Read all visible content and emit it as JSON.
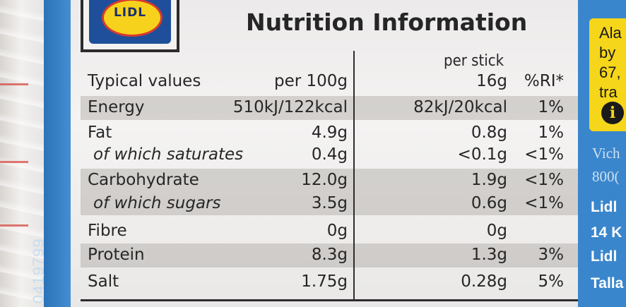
{
  "brand": {
    "logo_text": "LIDL"
  },
  "label": {
    "title": "Nutrition Information",
    "header": {
      "typical_values": "Typical values",
      "per_100g": "per 100g",
      "per_stick": "per stick",
      "stick_weight": "16g",
      "ri": "%RI*"
    },
    "rows": [
      {
        "name": "Energy",
        "per100": "510kJ/122kcal",
        "stick": "82kJ/20kcal",
        "ri": "1%"
      },
      {
        "name": "Fat",
        "per100": "4.9g",
        "stick": "0.8g",
        "ri": "1%"
      },
      {
        "name": "of which saturates",
        "per100": "0.4g",
        "stick": "<0.1g",
        "ri": "<1%"
      },
      {
        "name": "Carbohydrate",
        "per100": "12.0g",
        "stick": "1.9g",
        "ri": "<1%"
      },
      {
        "name": "of which sugars",
        "per100": "3.5g",
        "stick": "0.6g",
        "ri": "<1%"
      },
      {
        "name": "Fibre",
        "per100": "0g",
        "stick": "0g",
        "ri": ""
      },
      {
        "name": "Protein",
        "per100": "8.3g",
        "stick": "1.3g",
        "ri": "3%"
      },
      {
        "name": "Salt",
        "per100": "1.75g",
        "stick": "0.28g",
        "ri": "5%"
      }
    ]
  },
  "side": {
    "barcode_number": "0419799",
    "yellow_lines": [
      "Ala",
      "by",
      "67,",
      "tra"
    ],
    "info_icon": "i",
    "light_lines": [
      "Vich",
      "800("
    ],
    "white_lines": [
      "Lidl",
      "14 K",
      "Lidl",
      "Talla"
    ]
  },
  "colors": {
    "background_blue": "#3f86c8",
    "label_white": "#f4f3f2",
    "text_dark": "#262626",
    "yellow": "#f5d61a"
  }
}
